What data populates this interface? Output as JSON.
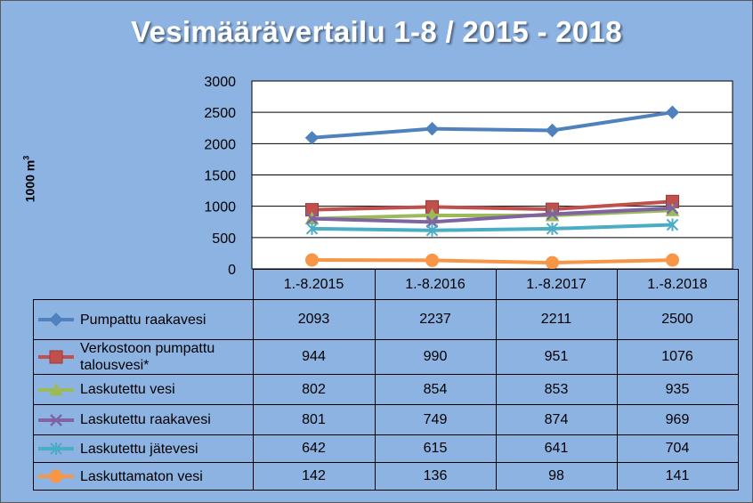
{
  "chart_data": {
    "type": "line",
    "title": "Vesimäärävertailu 1-8 / 2015 - 2018",
    "xlabel": "",
    "ylabel": "1000 m³",
    "ylabel_main": "1000 m",
    "ylabel_sup": "3",
    "ylim": [
      0,
      3000
    ],
    "yticks": [
      0,
      500,
      1000,
      1500,
      2000,
      2500,
      3000
    ],
    "categories": [
      "1.-8.2015",
      "1.-8.2016",
      "1.-8.2017",
      "1.-8.2018"
    ],
    "series": [
      {
        "name": "Pumpattu raakavesi",
        "values": [
          2093,
          2237,
          2211,
          2500
        ],
        "color": "#4f81bd",
        "marker": "diamond"
      },
      {
        "name": "Verkostoon pumpattu talousvesi*",
        "values": [
          944,
          990,
          951,
          1076
        ],
        "color": "#c0504d",
        "marker": "square"
      },
      {
        "name": "Laskutettu vesi",
        "values": [
          802,
          854,
          853,
          935
        ],
        "color": "#9bbb59",
        "marker": "triangle"
      },
      {
        "name": "Laskutettu raakavesi",
        "values": [
          801,
          749,
          874,
          969
        ],
        "color": "#8064a2",
        "marker": "x"
      },
      {
        "name": "Laskutettu jätevesi",
        "values": [
          642,
          615,
          641,
          704
        ],
        "color": "#4bacc6",
        "marker": "star"
      },
      {
        "name": "Laskuttamaton vesi",
        "values": [
          142,
          136,
          98,
          141
        ],
        "color": "#f79646",
        "marker": "circle"
      }
    ],
    "grid": true,
    "legend": "data-table"
  }
}
